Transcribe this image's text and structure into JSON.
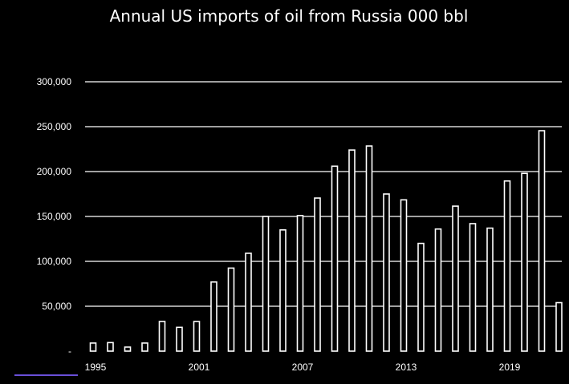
{
  "chart_data": {
    "type": "bar",
    "title": "Annual US imports of oil from Russia 000 bbl",
    "xlabel": "",
    "ylabel": "",
    "ylim": [
      0,
      300000
    ],
    "y_ticks": [
      0,
      50000,
      100000,
      150000,
      200000,
      250000,
      300000
    ],
    "y_tick_labels": [
      "-",
      "50,000",
      "100,000",
      "150,000",
      "200,000",
      "250,000",
      "300,000"
    ],
    "x_tick_labels": [
      {
        "year": 1995,
        "label": "1995"
      },
      {
        "year": 2001,
        "label": "2001"
      },
      {
        "year": 2007,
        "label": "2007"
      },
      {
        "year": 2013,
        "label": "2013"
      },
      {
        "year": 2019,
        "label": "2019"
      }
    ],
    "grid": true,
    "colors": {
      "background": "#000000",
      "bar_fill": "#000000",
      "bar_stroke": "#ffffff",
      "grid": "#ffffff",
      "text": "#ffffff",
      "accent": "#6a4fd8"
    },
    "x": [
      1995,
      1996,
      1997,
      1998,
      1999,
      2000,
      2001,
      2002,
      2003,
      2004,
      2005,
      2006,
      2007,
      2008,
      2009,
      2010,
      2011,
      2012,
      2013,
      2014,
      2015,
      2016,
      2017,
      2018,
      2019,
      2020,
      2021,
      2022
    ],
    "values": [
      9000,
      9500,
      4500,
      9000,
      33000,
      26500,
      33000,
      77000,
      92500,
      109000,
      150000,
      135000,
      151000,
      170500,
      206000,
      224000,
      228500,
      175000,
      168500,
      120000,
      136000,
      161500,
      142000,
      137000,
      189500,
      198000,
      245500,
      54000
    ]
  }
}
